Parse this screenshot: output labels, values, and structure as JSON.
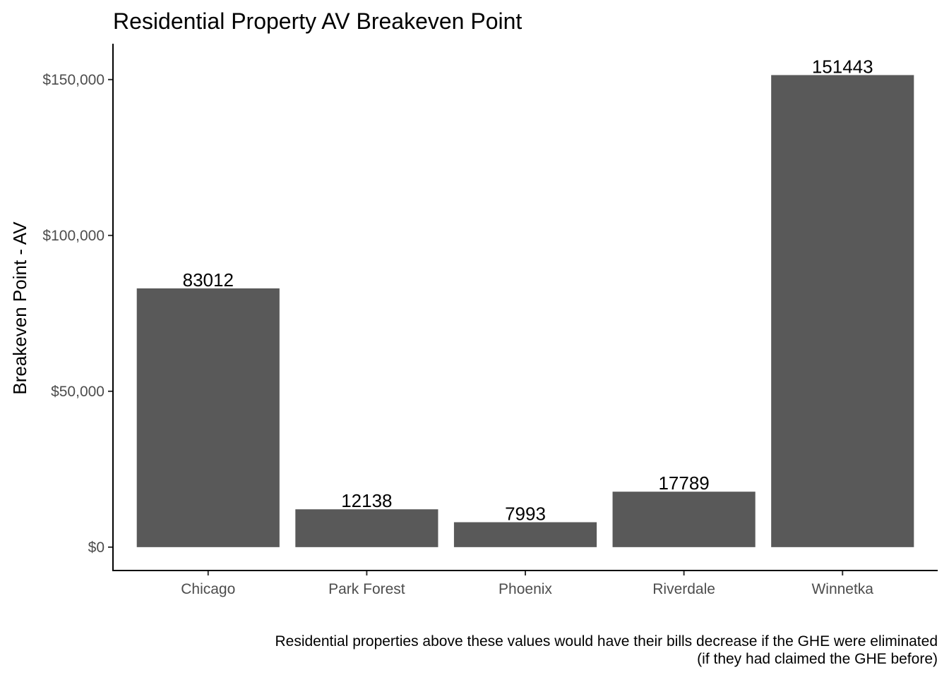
{
  "chart_data": {
    "type": "bar",
    "title": "Residential Property AV Breakeven Point",
    "xlabel": "",
    "ylabel": "Breakeven Point - AV",
    "categories": [
      "Chicago",
      "Park Forest",
      "Phoenix",
      "Riverdale",
      "Winnetka"
    ],
    "values": [
      83012,
      12138,
      7993,
      17789,
      151443
    ],
    "data_labels": [
      "83012",
      "12138",
      "7993",
      "17789",
      "151443"
    ],
    "ylim": [
      -7500,
      161500
    ],
    "yticks": [
      0,
      50000,
      100000,
      150000
    ],
    "ytick_labels": [
      "$0",
      "$50,000",
      "$100,000",
      "$150,000"
    ],
    "bar_color": "#595959",
    "grid": false,
    "caption_lines": [
      "Residential properties above these values would have their bills decrease if the GHE were eliminated",
      "(if they had claimed the GHE before)"
    ]
  }
}
